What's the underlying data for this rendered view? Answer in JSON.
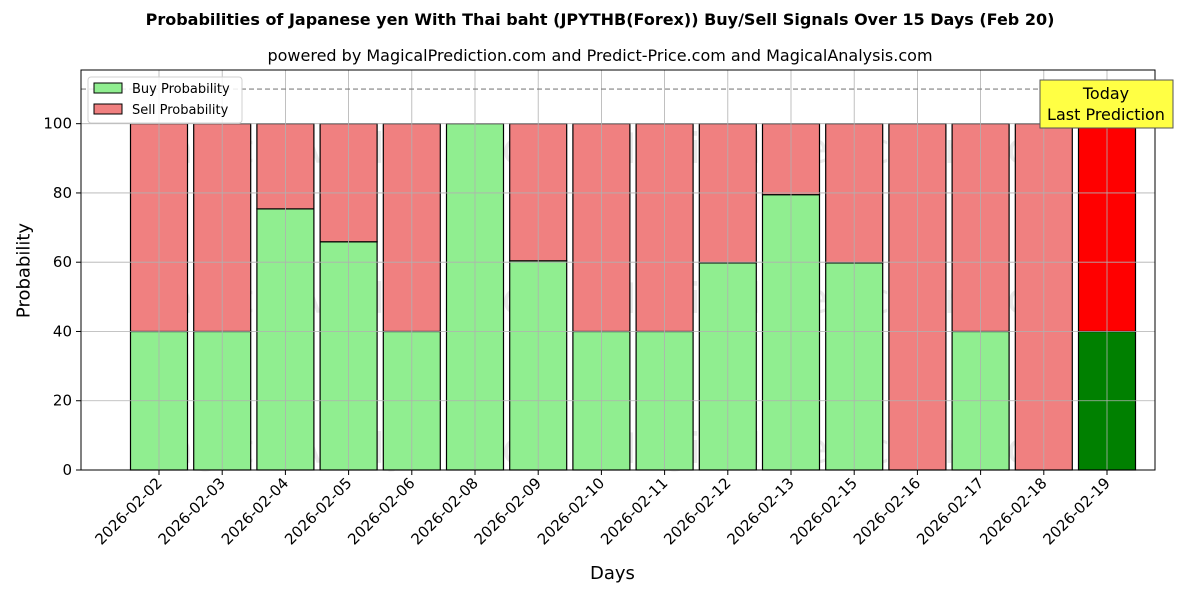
{
  "chart_data": {
    "type": "bar",
    "stacked": true,
    "title": "Probabilities of Japanese yen With Thai baht (JPYTHB(Forex)) Buy/Sell Signals Over 15 Days (Feb 20)",
    "subtitle": "powered by MagicalPrediction.com and Predict-Price.com and MagicalAnalysis.com",
    "xlabel": "Days",
    "ylabel": "Probability",
    "ylim": [
      0,
      115.5
    ],
    "yticks": [
      0,
      20,
      40,
      60,
      80,
      100
    ],
    "grid": true,
    "legend_position": "upper left",
    "reference_line": 110,
    "categories": [
      "2026-02-02",
      "2026-02-03",
      "2026-02-04",
      "2026-02-05",
      "2026-02-06",
      "2026-02-08",
      "2026-02-09",
      "2026-02-10",
      "2026-02-11",
      "2026-02-12",
      "2026-02-13",
      "2026-02-15",
      "2026-02-16",
      "2026-02-17",
      "2026-02-18",
      "2026-02-19"
    ],
    "series": [
      {
        "name": "Buy Probability",
        "color": "#90EE90",
        "values": [
          40,
          40,
          75.4,
          65.9,
          40,
          100,
          60.4,
          40,
          40,
          59.8,
          79.5,
          59.8,
          0,
          40,
          0,
          40
        ]
      },
      {
        "name": "Sell Probability",
        "color": "#F08080",
        "values": [
          60,
          60,
          24.6,
          34.1,
          60,
          0,
          39.6,
          60,
          60,
          40.2,
          20.5,
          40.2,
          100,
          60,
          100,
          60
        ]
      }
    ],
    "highlight": {
      "index": 15,
      "buy_color": "#008000",
      "sell_color": "#FF0000"
    },
    "annotation": {
      "line1": "Today",
      "line2": "Last Prediction",
      "bg": "#FFFF44"
    },
    "watermarks": [
      "MagicalAnalysis.com",
      "MagicalPrediction.com"
    ]
  }
}
